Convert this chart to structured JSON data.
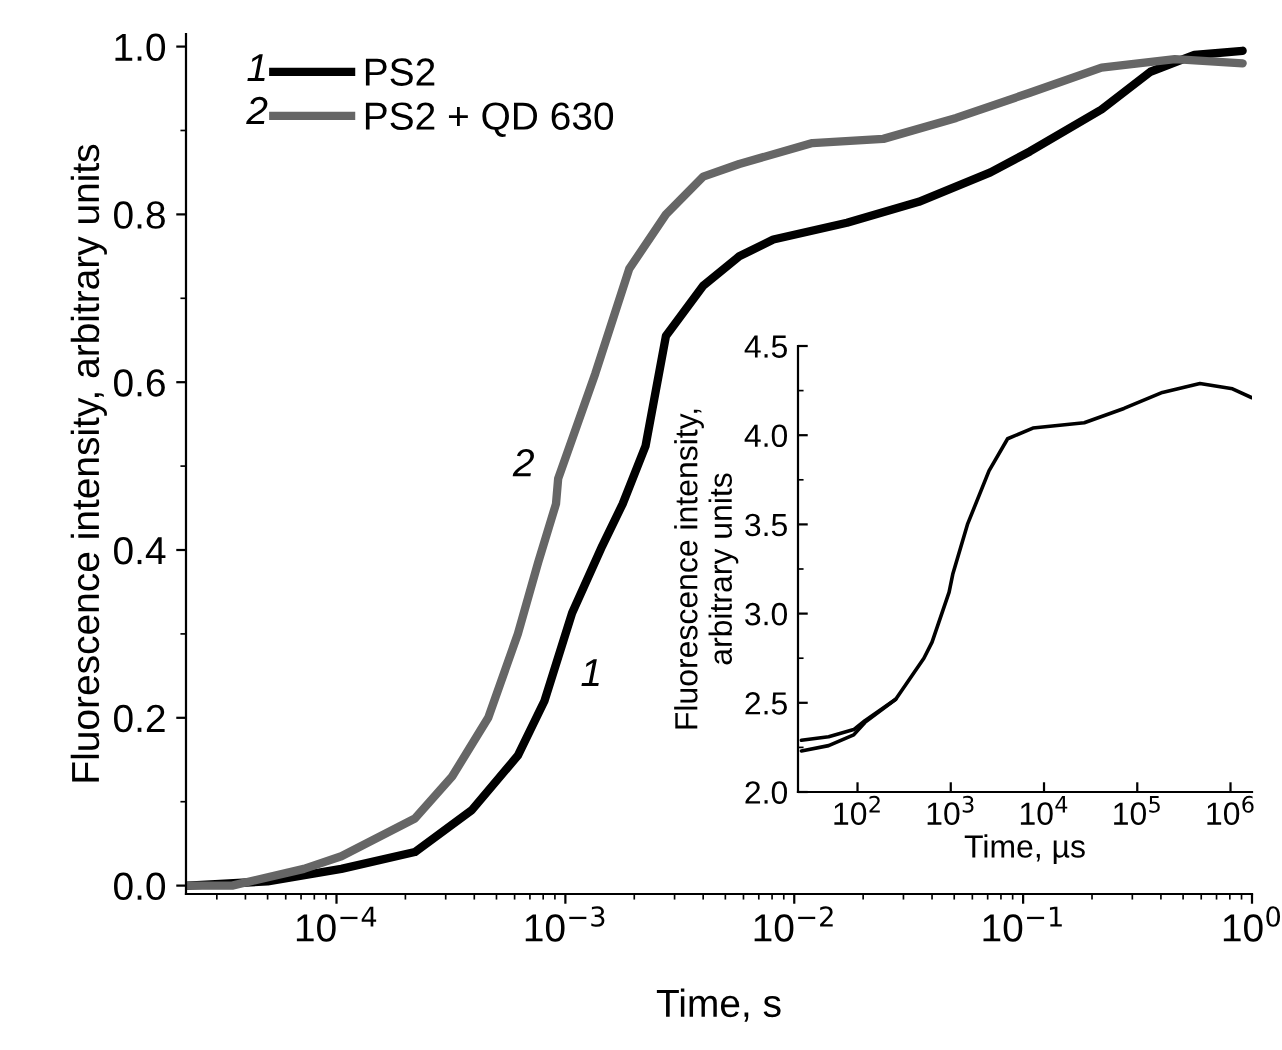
{
  "chart_data": [
    {
      "type": "line",
      "xlabel": "Time, s",
      "ylabel": "Fluorescence intensity, arbitrary units",
      "log": "x",
      "xlim": [
        2.2e-05,
        1.0
      ],
      "ylim": [
        -0.01,
        1.015
      ],
      "xticks": [
        {
          "value": 0.0001,
          "label": "10$^{−4}$"
        },
        {
          "value": 0.001,
          "label": "10$^{−3}$"
        },
        {
          "value": 0.01,
          "label": "10$^{−2}$"
        },
        {
          "value": 0.1,
          "label": "10$^{−1}$"
        },
        {
          "value": 1,
          "label": "10$^{0}$"
        }
      ],
      "yticks": [
        {
          "value": 0,
          "label": "0.0"
        },
        {
          "value": 0.2,
          "label": "0.2"
        },
        {
          "value": 0.4,
          "label": "0.4"
        },
        {
          "value": 0.6,
          "label": "0.6"
        },
        {
          "value": 0.8,
          "label": "0.8"
        },
        {
          "value": 1,
          "label": "1.0"
        }
      ],
      "legend": "top left",
      "grid": false,
      "annotations": [
        "1",
        "2",
        "1",
        "2"
      ],
      "series": [
        {
          "name": "PS2",
          "color": "#000000",
          "x": [
            2.24e-05,
            5e-05,
            0.000105,
            0.00022,
            0.00039,
            0.00062,
            0.00081,
            0.00107,
            0.00145,
            0.00178,
            0.00224,
            0.00275,
            0.004,
            0.00575,
            0.0081,
            0.017,
            0.035,
            0.072,
            0.107,
            0.22,
            0.36,
            0.56,
            0.91
          ],
          "values": [
            0.0,
            0.005,
            0.02,
            0.04,
            0.09,
            0.155,
            0.22,
            0.325,
            0.405,
            0.455,
            0.524,
            0.655,
            0.715,
            0.75,
            0.77,
            0.79,
            0.815,
            0.85,
            0.875,
            0.925,
            0.97,
            0.99,
            0.995
          ]
        },
        {
          "name": "PS2 + QD 630",
          "color": "#666666",
          "x": [
            2.24e-05,
            3.5e-05,
            7.2e-05,
            0.000105,
            0.00022,
            0.00032,
            0.00046,
            0.00062,
            0.00076,
            0.00091,
            0.00093,
            0.00135,
            0.0019,
            0.00275,
            0.004,
            0.00575,
            0.012,
            0.0245,
            0.051,
            0.107,
            0.22,
            0.46,
            0.91
          ],
          "values": [
            0.0,
            0.0,
            0.02,
            0.035,
            0.08,
            0.13,
            0.2,
            0.3,
            0.385,
            0.455,
            0.485,
            0.61,
            0.735,
            0.8,
            0.845,
            0.86,
            0.885,
            0.89,
            0.915,
            0.945,
            0.975,
            0.985,
            0.98
          ]
        }
      ]
    },
    {
      "type": "line",
      "xlabel": "Time, µs",
      "ylabel": "Fluorescence intensity,\narbitrary units",
      "log": "x",
      "xlim": [
        23,
        1700000.0
      ],
      "ylim": [
        2.0,
        4.5
      ],
      "xticks": [
        {
          "value": 100,
          "label": "10$^{2}$"
        },
        {
          "value": 1000,
          "label": "10$^{3}$"
        },
        {
          "value": 10000,
          "label": "10$^{4}$"
        },
        {
          "value": 100000,
          "label": "10$^{5}$"
        },
        {
          "value": 1000000,
          "label": "10$^{6}$"
        }
      ],
      "yticks": [
        {
          "value": 2.0,
          "label": "2.0"
        },
        {
          "value": 2.5,
          "label": "2.5"
        },
        {
          "value": 3.0,
          "label": "3.0"
        },
        {
          "value": 3.5,
          "label": "3.5"
        },
        {
          "value": 4.0,
          "label": "4.0"
        },
        {
          "value": 4.5,
          "label": "4.5"
        }
      ],
      "grid": false,
      "series": [
        {
          "color": "#000000",
          "x": [
            25,
            49,
            91,
            120,
            257,
            515,
            630,
            960,
            1050,
            1510,
            2570,
            4070,
            7600,
            27000,
            72000,
            186000,
            470000,
            1050000,
            1700000
          ],
          "values": [
            2.29,
            2.31,
            2.35,
            2.4,
            2.52,
            2.75,
            2.84,
            3.12,
            3.22,
            3.5,
            3.8,
            3.98,
            4.04,
            4.07,
            4.15,
            4.24,
            4.29,
            4.26,
            4.21
          ]
        },
        {
          "color": "#000000",
          "x": [
            25,
            49,
            91,
            120,
            257
          ],
          "values": [
            2.23,
            2.26,
            2.32,
            2.39,
            2.52
          ]
        }
      ]
    }
  ]
}
